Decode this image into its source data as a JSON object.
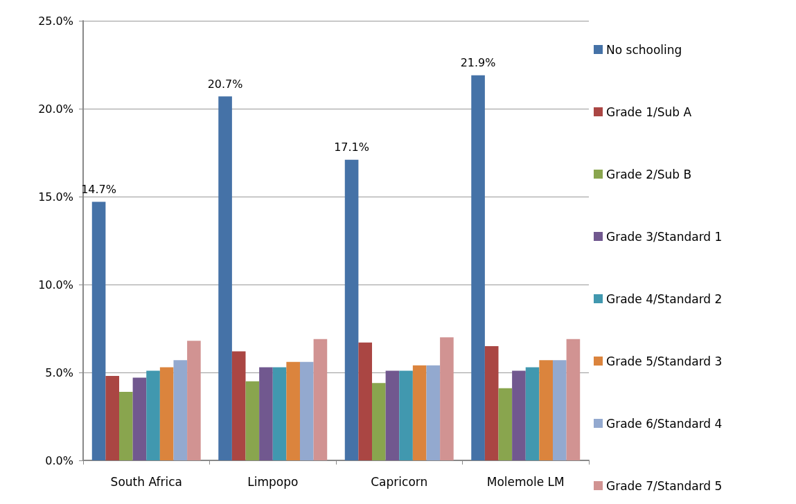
{
  "chart_data": {
    "type": "bar",
    "categories": [
      "South Africa",
      "Limpopo",
      "Capricorn",
      "Molemole LM"
    ],
    "series": [
      {
        "name": "No schooling",
        "color": "#4572a7",
        "values": [
          14.7,
          20.7,
          17.1,
          21.9
        ],
        "value_labels": [
          "14.7%",
          "20.7%",
          "17.1%",
          "21.9%"
        ]
      },
      {
        "name": "Grade 1/Sub A",
        "color": "#aa4643",
        "values": [
          4.8,
          6.2,
          6.7,
          6.5
        ]
      },
      {
        "name": "Grade 2/Sub B",
        "color": "#89a54e",
        "values": [
          3.9,
          4.5,
          4.4,
          4.1
        ]
      },
      {
        "name": "Grade 3/Standard 1",
        "color": "#71588f",
        "values": [
          4.7,
          5.3,
          5.1,
          5.1
        ]
      },
      {
        "name": "Grade 4/Standard 2",
        "color": "#4198af",
        "values": [
          5.1,
          5.3,
          5.1,
          5.3
        ]
      },
      {
        "name": "Grade 5/Standard 3",
        "color": "#db843d",
        "values": [
          5.3,
          5.6,
          5.4,
          5.7
        ]
      },
      {
        "name": "Grade 6/Standard 4",
        "color": "#93a9cf",
        "values": [
          5.7,
          5.6,
          5.4,
          5.7
        ]
      },
      {
        "name": "Grade 7/Standard 5",
        "color": "#d19392",
        "values": [
          6.8,
          6.9,
          7.0,
          6.9
        ]
      }
    ],
    "ylim": [
      0,
      25
    ],
    "yticks": [
      {
        "value": 0,
        "label": "0.0%"
      },
      {
        "value": 5,
        "label": "5.0%"
      },
      {
        "value": 10,
        "label": "10.0%"
      },
      {
        "value": 15,
        "label": "15.0%"
      },
      {
        "value": 20,
        "label": "20.0%"
      },
      {
        "value": 25,
        "label": "25.0%"
      }
    ],
    "grid": "y",
    "legend": "right"
  }
}
